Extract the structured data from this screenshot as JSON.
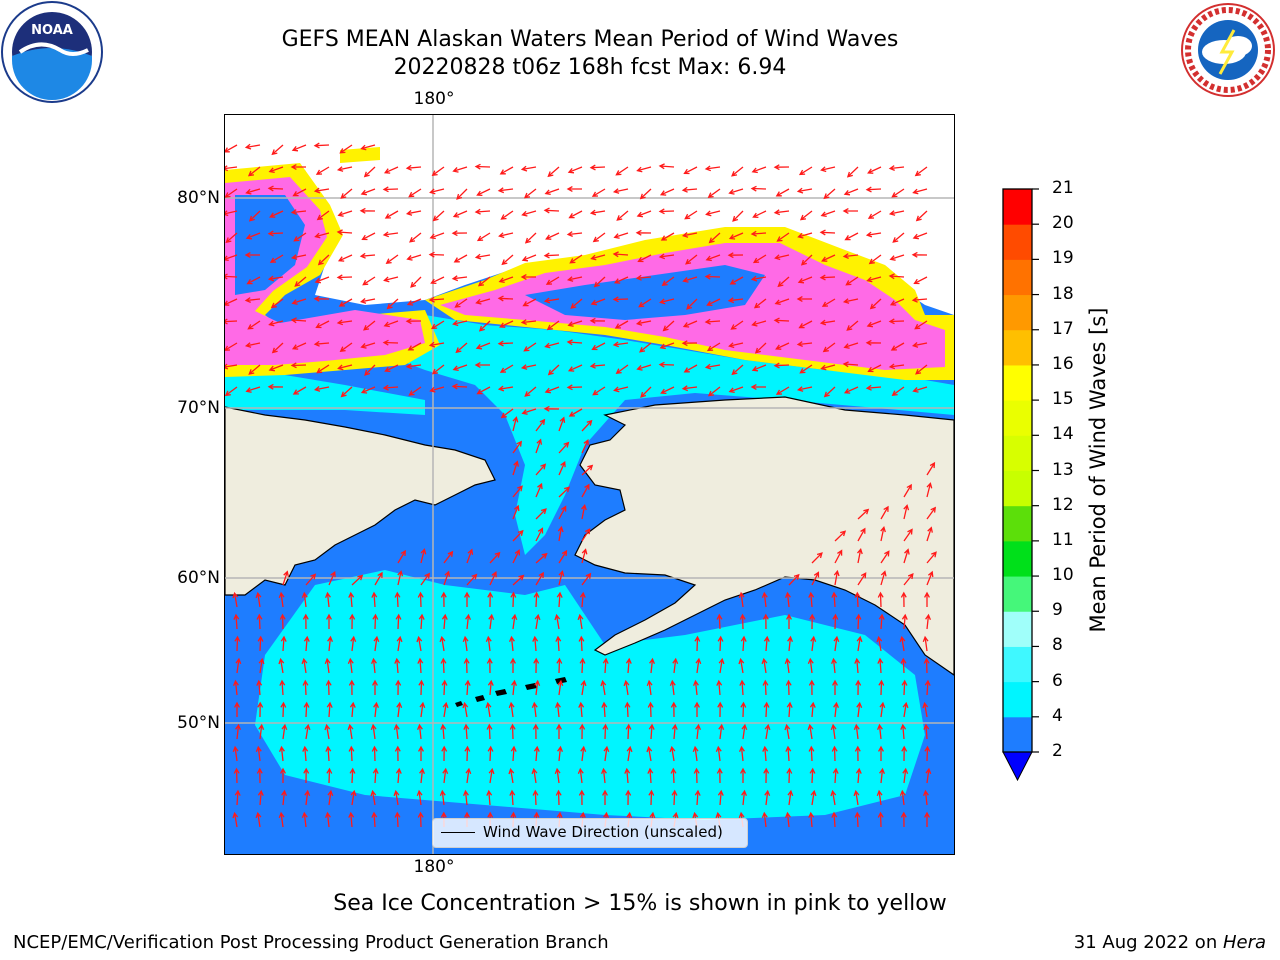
{
  "header": {
    "title_line1": "GEFS MEAN Alaskan Waters Mean Period of Wind Waves",
    "title_line2": "20220828 t06z 168h fcst   Max: 6.94"
  },
  "logos": {
    "left": {
      "name": "noaa-logo",
      "text": "NOAA"
    },
    "right": {
      "name": "nws-logo"
    }
  },
  "map": {
    "lon_label_top": "180°",
    "lon_label_bottom": "180°",
    "lat_labels": [
      "80°N",
      "70°N",
      "60°N",
      "50°N"
    ],
    "legend_label": "Wind Wave Direction (unscaled)",
    "colors": {
      "land": "#efedde",
      "ocean_base": "#1e7dff",
      "light_period": "#00f5ff",
      "ice_pink": "#ff6ae6",
      "ice_yellow": "#fff200",
      "arrows": "#ff1a1a"
    }
  },
  "chart_data": {
    "type": "heatmap",
    "colorbar": {
      "label": "Mean Period of Wind Waves [s]",
      "ticks": [
        2,
        4,
        6,
        8,
        9,
        10,
        11,
        12,
        13,
        14,
        15,
        16,
        17,
        18,
        19,
        20,
        21
      ],
      "levels": [
        {
          "from": 2,
          "to": 4,
          "color": "#1e7dff"
        },
        {
          "from": 4,
          "to": 6,
          "color": "#00f5ff"
        },
        {
          "from": 6,
          "to": 8,
          "color": "#3ff8ff"
        },
        {
          "from": 8,
          "to": 9,
          "color": "#a0fffa"
        },
        {
          "from": 9,
          "to": 10,
          "color": "#45f77a"
        },
        {
          "from": 10,
          "to": 11,
          "color": "#00e01a"
        },
        {
          "from": 11,
          "to": 12,
          "color": "#5cdf0a"
        },
        {
          "from": 12,
          "to": 13,
          "color": "#c8ff00"
        },
        {
          "from": 13,
          "to": 14,
          "color": "#d7ff00"
        },
        {
          "from": 14,
          "to": 15,
          "color": "#eaff00"
        },
        {
          "from": 15,
          "to": 16,
          "color": "#ffff00"
        },
        {
          "from": 16,
          "to": 17,
          "color": "#ffbf00"
        },
        {
          "from": 17,
          "to": 18,
          "color": "#ff9900"
        },
        {
          "from": 18,
          "to": 19,
          "color": "#ff7200"
        },
        {
          "from": 19,
          "to": 20,
          "color": "#ff4b00"
        },
        {
          "from": 20,
          "to": 21,
          "color": "#ff0000"
        }
      ],
      "under_color": "#0000ff",
      "extend": "min"
    },
    "max_value": 6.94
  },
  "notes": {
    "sea_ice": "Sea Ice Concentration > 15% is shown in pink to yellow"
  },
  "footer": {
    "left": "NCEP/EMC/Verification Post Processing Product Generation Branch",
    "date": "31 Aug 2022 on ",
    "machine": "Hera"
  }
}
